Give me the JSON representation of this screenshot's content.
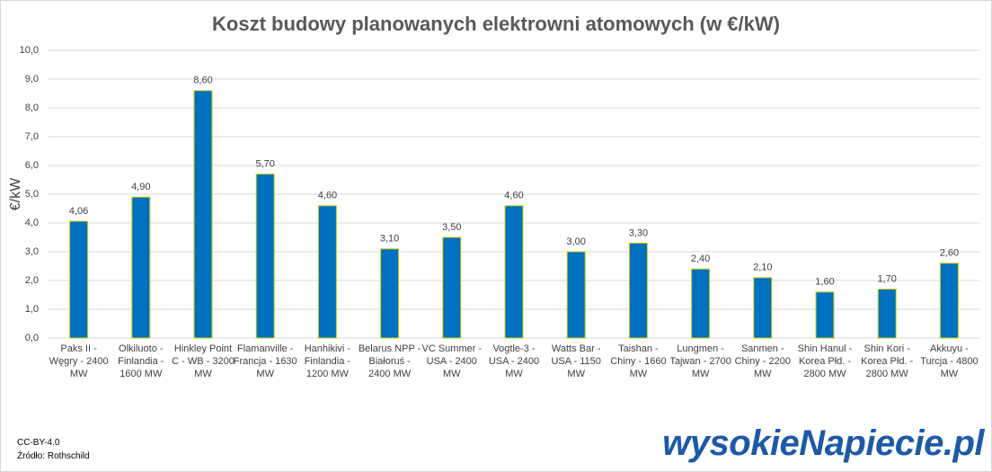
{
  "chart_data": {
    "type": "bar",
    "title": "Koszt budowy planowanych elektrowni atomowych (w €/kW)",
    "y_label": "€/kW",
    "categories": [
      "Paks II - Węgry - 2400 MW",
      "Olkiluoto - Finlandia - 1600 MW",
      "Hinkley Point C - WB - 3200 MW",
      "Flamanville - Francja - 1630 MW",
      "Hanhikivi - Finlandia - 1200 MW",
      "Belarus NPP - Białoruś - 2400 MW",
      "VC Summer - USA - 2400 MW",
      "Vogtle-3 - USA - 2400 MW",
      "Watts Bar - USA - 1150 MW",
      "Taishan - Chiny - 1660 MW",
      "Lungmen - Tajwan - 2700 MW",
      "Sanmen - Chiny - 2200 MW",
      "Shin Hanul - Korea Płd. - 2800 MW",
      "Shin Kori - Korea Płd. - 2800 MW",
      "Akkuyu - Turcja - 4800 MW"
    ],
    "values": [
      4.06,
      4.9,
      8.6,
      5.7,
      4.6,
      3.1,
      3.5,
      4.6,
      3.0,
      3.3,
      2.4,
      2.1,
      1.6,
      1.7,
      2.6
    ],
    "value_labels": [
      "4,06",
      "4,90",
      "8,60",
      "5,70",
      "4,60",
      "3,10",
      "3,50",
      "4,60",
      "3,00",
      "3,30",
      "2,40",
      "2,10",
      "1,60",
      "1,70",
      "2,60"
    ],
    "color": "#0070c0",
    "ylim": [
      0,
      10
    ],
    "yticks": [
      {
        "value": 0,
        "label": "0,0"
      },
      {
        "value": 1,
        "label": "1,0"
      },
      {
        "value": 2,
        "label": "2,0"
      },
      {
        "value": 3,
        "label": "3,0"
      },
      {
        "value": 4,
        "label": "4,0"
      },
      {
        "value": 5,
        "label": "5,0"
      },
      {
        "value": 6,
        "label": "6,0"
      },
      {
        "value": 7,
        "label": "7,0"
      },
      {
        "value": 8,
        "label": "8,0"
      },
      {
        "value": 9,
        "label": "9,0"
      },
      {
        "value": 10,
        "label": "10,0"
      }
    ],
    "grid": true
  },
  "footer": {
    "license": "CC-BY-4.0",
    "source": "Źródło: Rothschild",
    "logo": "wysokieNapiecie.pl"
  }
}
